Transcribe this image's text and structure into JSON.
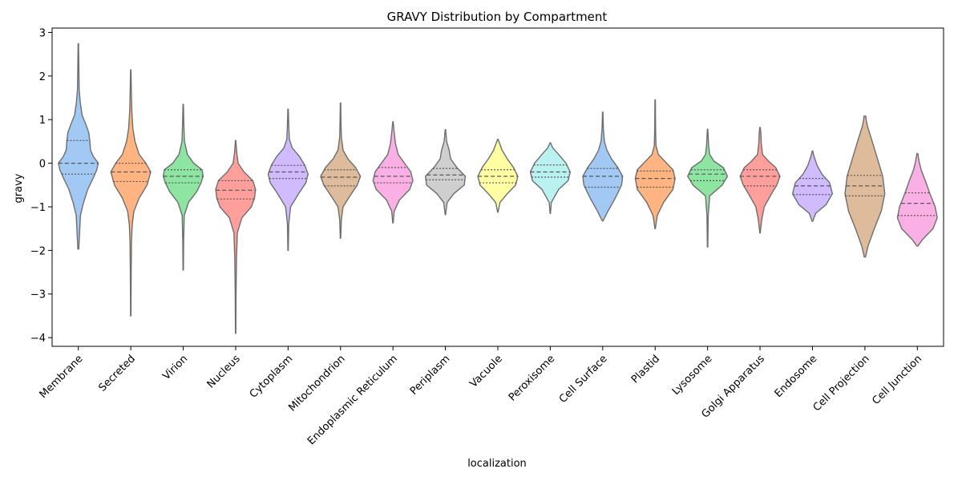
{
  "chart_data": {
    "type": "violin",
    "title": "GRAVY Distribution by Compartment",
    "xlabel": "localization",
    "ylabel": "gravy",
    "ylim": [
      -4.2,
      3.1
    ],
    "yticks": [
      3,
      2,
      1,
      0,
      -1,
      -2,
      -3,
      -4
    ],
    "inner": "quartile",
    "grid": false,
    "categories": [
      {
        "name": "Membrane",
        "color": "#a1c9f4",
        "min": -1.97,
        "max": 2.74,
        "q1": -0.25,
        "median": 0.0,
        "q3": 0.52,
        "profile": [
          [
            -1.97,
            0.02
          ],
          [
            -1.6,
            0.06
          ],
          [
            -1.2,
            0.1
          ],
          [
            -0.9,
            0.25
          ],
          [
            -0.6,
            0.45
          ],
          [
            -0.35,
            0.7
          ],
          [
            -0.15,
            0.88
          ],
          [
            0.0,
            0.95
          ],
          [
            0.15,
            0.72
          ],
          [
            0.3,
            0.58
          ],
          [
            0.5,
            0.55
          ],
          [
            0.7,
            0.5
          ],
          [
            0.9,
            0.35
          ],
          [
            1.1,
            0.18
          ],
          [
            1.4,
            0.09
          ],
          [
            1.7,
            0.04
          ],
          [
            2.2,
            0.025
          ],
          [
            2.74,
            0.01
          ]
        ]
      },
      {
        "name": "Secreted",
        "color": "#ffb482",
        "min": -3.5,
        "max": 2.14,
        "q1": -0.42,
        "median": -0.2,
        "q3": 0.0,
        "profile": [
          [
            -3.5,
            0.01
          ],
          [
            -2.5,
            0.02
          ],
          [
            -1.8,
            0.035
          ],
          [
            -1.4,
            0.07
          ],
          [
            -1.1,
            0.15
          ],
          [
            -0.8,
            0.4
          ],
          [
            -0.5,
            0.78
          ],
          [
            -0.2,
            0.95
          ],
          [
            0.0,
            0.72
          ],
          [
            0.2,
            0.4
          ],
          [
            0.5,
            0.2
          ],
          [
            0.8,
            0.1
          ],
          [
            1.2,
            0.05
          ],
          [
            1.6,
            0.03
          ],
          [
            2.14,
            0.01
          ]
        ]
      },
      {
        "name": "Virion",
        "color": "#8de5a1",
        "min": -2.45,
        "max": 1.35,
        "q1": -0.45,
        "median": -0.3,
        "q3": -0.15,
        "profile": [
          [
            -2.45,
            0.01
          ],
          [
            -1.8,
            0.02
          ],
          [
            -1.2,
            0.05
          ],
          [
            -0.9,
            0.25
          ],
          [
            -0.65,
            0.65
          ],
          [
            -0.45,
            0.85
          ],
          [
            -0.3,
            0.95
          ],
          [
            -0.15,
            0.9
          ],
          [
            0.0,
            0.5
          ],
          [
            0.2,
            0.2
          ],
          [
            0.5,
            0.06
          ],
          [
            0.9,
            0.03
          ],
          [
            1.35,
            0.01
          ]
        ]
      },
      {
        "name": "Nucleus",
        "color": "#ff9f9b",
        "min": -3.9,
        "max": 0.52,
        "q1": -0.82,
        "median": -0.62,
        "q3": -0.4,
        "profile": [
          [
            -3.9,
            0.01
          ],
          [
            -3.0,
            0.02
          ],
          [
            -2.2,
            0.04
          ],
          [
            -1.6,
            0.08
          ],
          [
            -1.25,
            0.3
          ],
          [
            -1.0,
            0.75
          ],
          [
            -0.8,
            0.9
          ],
          [
            -0.6,
            0.95
          ],
          [
            -0.4,
            0.82
          ],
          [
            -0.2,
            0.4
          ],
          [
            0.0,
            0.12
          ],
          [
            0.25,
            0.05
          ],
          [
            0.52,
            0.01
          ]
        ]
      },
      {
        "name": "Cytoplasm",
        "color": "#d0bbff",
        "min": -2.0,
        "max": 1.24,
        "q1": -0.35,
        "median": -0.2,
        "q3": -0.05,
        "profile": [
          [
            -2.0,
            0.01
          ],
          [
            -1.4,
            0.03
          ],
          [
            -1.0,
            0.12
          ],
          [
            -0.7,
            0.5
          ],
          [
            -0.45,
            0.85
          ],
          [
            -0.25,
            0.95
          ],
          [
            -0.05,
            0.8
          ],
          [
            0.15,
            0.55
          ],
          [
            0.35,
            0.2
          ],
          [
            0.55,
            0.06
          ],
          [
            0.9,
            0.03
          ],
          [
            1.24,
            0.01
          ]
        ]
      },
      {
        "name": "Mitochondrion",
        "color": "#debb9b",
        "min": -1.72,
        "max": 1.38,
        "q1": -0.52,
        "median": -0.32,
        "q3": -0.15,
        "profile": [
          [
            -1.72,
            0.01
          ],
          [
            -1.3,
            0.04
          ],
          [
            -1.0,
            0.12
          ],
          [
            -0.75,
            0.45
          ],
          [
            -0.5,
            0.8
          ],
          [
            -0.3,
            0.95
          ],
          [
            -0.1,
            0.72
          ],
          [
            0.1,
            0.35
          ],
          [
            0.3,
            0.12
          ],
          [
            0.6,
            0.04
          ],
          [
            1.0,
            0.02
          ],
          [
            1.38,
            0.01
          ]
        ]
      },
      {
        "name": "Endoplasmic Reticulum",
        "color": "#fab0e4",
        "min": -1.37,
        "max": 0.95,
        "q1": -0.45,
        "median": -0.3,
        "q3": -0.1,
        "profile": [
          [
            -1.37,
            0.01
          ],
          [
            -1.1,
            0.06
          ],
          [
            -0.85,
            0.3
          ],
          [
            -0.6,
            0.8
          ],
          [
            -0.4,
            0.95
          ],
          [
            -0.2,
            0.85
          ],
          [
            0.0,
            0.55
          ],
          [
            0.2,
            0.25
          ],
          [
            0.45,
            0.12
          ],
          [
            0.7,
            0.06
          ],
          [
            0.95,
            0.01
          ]
        ]
      },
      {
        "name": "Periplasm",
        "color": "#cfcfcf",
        "min": -1.18,
        "max": 0.77,
        "q1": -0.38,
        "median": -0.27,
        "q3": -0.12,
        "profile": [
          [
            -1.18,
            0.01
          ],
          [
            -0.9,
            0.08
          ],
          [
            -0.7,
            0.4
          ],
          [
            -0.5,
            0.9
          ],
          [
            -0.3,
            0.95
          ],
          [
            -0.1,
            0.55
          ],
          [
            0.1,
            0.25
          ],
          [
            0.3,
            0.18
          ],
          [
            0.5,
            0.06
          ],
          [
            0.77,
            0.01
          ]
        ]
      },
      {
        "name": "Vacuole",
        "color": "#fffea3",
        "min": -1.12,
        "max": 0.55,
        "q1": -0.45,
        "median": -0.3,
        "q3": -0.15,
        "profile": [
          [
            -1.12,
            0.01
          ],
          [
            -0.9,
            0.1
          ],
          [
            -0.7,
            0.45
          ],
          [
            -0.5,
            0.85
          ],
          [
            -0.3,
            0.95
          ],
          [
            -0.1,
            0.75
          ],
          [
            0.1,
            0.45
          ],
          [
            0.3,
            0.2
          ],
          [
            0.55,
            0.01
          ]
        ]
      },
      {
        "name": "Peroxisome",
        "color": "#b9f2f0",
        "min": -1.15,
        "max": 0.47,
        "q1": -0.32,
        "median": -0.2,
        "q3": -0.04,
        "profile": [
          [
            -1.15,
            0.01
          ],
          [
            -0.9,
            0.05
          ],
          [
            -0.6,
            0.4
          ],
          [
            -0.4,
            0.85
          ],
          [
            -0.2,
            0.95
          ],
          [
            0.0,
            0.75
          ],
          [
            0.2,
            0.4
          ],
          [
            0.35,
            0.12
          ],
          [
            0.47,
            0.01
          ]
        ]
      },
      {
        "name": "Cell Surface",
        "color": "#a1c9f4",
        "min": -1.32,
        "max": 1.17,
        "q1": -0.55,
        "median": -0.3,
        "q3": -0.12,
        "profile": [
          [
            -1.32,
            0.02
          ],
          [
            -1.1,
            0.25
          ],
          [
            -0.8,
            0.6
          ],
          [
            -0.5,
            0.9
          ],
          [
            -0.3,
            0.95
          ],
          [
            -0.1,
            0.72
          ],
          [
            0.1,
            0.42
          ],
          [
            0.3,
            0.2
          ],
          [
            0.5,
            0.08
          ],
          [
            0.8,
            0.03
          ],
          [
            1.17,
            0.01
          ]
        ]
      },
      {
        "name": "Plastid",
        "color": "#ffb482",
        "min": -1.5,
        "max": 1.45,
        "q1": -0.55,
        "median": -0.35,
        "q3": -0.18,
        "profile": [
          [
            -1.5,
            0.01
          ],
          [
            -1.2,
            0.1
          ],
          [
            -0.9,
            0.4
          ],
          [
            -0.6,
            0.85
          ],
          [
            -0.35,
            0.95
          ],
          [
            -0.15,
            0.85
          ],
          [
            0.05,
            0.45
          ],
          [
            0.2,
            0.15
          ],
          [
            0.4,
            0.04
          ],
          [
            0.8,
            0.02
          ],
          [
            1.45,
            0.01
          ]
        ]
      },
      {
        "name": "Lysosome",
        "color": "#8de5a1",
        "min": -1.92,
        "max": 0.78,
        "q1": -0.4,
        "median": -0.25,
        "q3": -0.15,
        "profile": [
          [
            -1.92,
            0.01
          ],
          [
            -1.2,
            0.03
          ],
          [
            -0.75,
            0.1
          ],
          [
            -0.5,
            0.7
          ],
          [
            -0.3,
            0.95
          ],
          [
            -0.1,
            0.75
          ],
          [
            0.05,
            0.3
          ],
          [
            0.2,
            0.1
          ],
          [
            0.4,
            0.05
          ],
          [
            0.78,
            0.01
          ]
        ]
      },
      {
        "name": "Golgi Apparatus",
        "color": "#ff9f9b",
        "min": -1.6,
        "max": 0.82,
        "q1": -0.52,
        "median": -0.3,
        "q3": -0.15,
        "profile": [
          [
            -1.6,
            0.01
          ],
          [
            -1.3,
            0.08
          ],
          [
            -1.0,
            0.2
          ],
          [
            -0.7,
            0.55
          ],
          [
            -0.5,
            0.8
          ],
          [
            -0.3,
            0.95
          ],
          [
            -0.1,
            0.75
          ],
          [
            0.05,
            0.4
          ],
          [
            0.2,
            0.12
          ],
          [
            0.45,
            0.06
          ],
          [
            0.7,
            0.04
          ],
          [
            0.82,
            0.01
          ]
        ]
      },
      {
        "name": "Endosome",
        "color": "#d0bbff",
        "min": -1.33,
        "max": 0.28,
        "q1": -0.72,
        "median": -0.52,
        "q3": -0.35,
        "profile": [
          [
            -1.33,
            0.02
          ],
          [
            -1.15,
            0.15
          ],
          [
            -0.95,
            0.65
          ],
          [
            -0.7,
            0.95
          ],
          [
            -0.45,
            0.82
          ],
          [
            -0.25,
            0.45
          ],
          [
            -0.05,
            0.22
          ],
          [
            0.15,
            0.08
          ],
          [
            0.28,
            0.01
          ]
        ]
      },
      {
        "name": "Cell Projection",
        "color": "#debb9b",
        "min": -2.15,
        "max": 1.08,
        "q1": -0.75,
        "median": -0.52,
        "q3": -0.28,
        "profile": [
          [
            -2.15,
            0.03
          ],
          [
            -1.9,
            0.15
          ],
          [
            -1.5,
            0.45
          ],
          [
            -1.1,
            0.78
          ],
          [
            -0.7,
            0.95
          ],
          [
            -0.3,
            0.85
          ],
          [
            0.1,
            0.6
          ],
          [
            0.5,
            0.35
          ],
          [
            0.85,
            0.12
          ],
          [
            1.0,
            0.06
          ],
          [
            1.08,
            0.04
          ]
        ]
      },
      {
        "name": "Cell Junction",
        "color": "#fab0e4",
        "min": -1.9,
        "max": 0.22,
        "q1": -1.2,
        "median": -0.92,
        "q3": -0.68,
        "profile": [
          [
            -1.9,
            0.02
          ],
          [
            -1.75,
            0.25
          ],
          [
            -1.5,
            0.75
          ],
          [
            -1.25,
            0.95
          ],
          [
            -1.0,
            0.85
          ],
          [
            -0.7,
            0.6
          ],
          [
            -0.4,
            0.38
          ],
          [
            -0.15,
            0.18
          ],
          [
            0.05,
            0.08
          ],
          [
            0.22,
            0.02
          ]
        ]
      }
    ]
  }
}
